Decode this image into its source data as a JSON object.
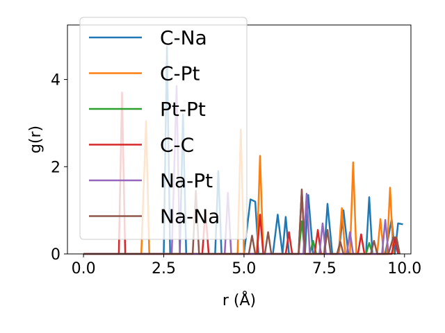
{
  "chart_data": {
    "type": "line",
    "xlabel": "r (Å)",
    "ylabel": "g(r)",
    "xlim": [
      -0.5,
      10.2
    ],
    "ylim": [
      0,
      5.25
    ],
    "xticks": [
      0.0,
      2.5,
      5.0,
      7.5,
      10.0
    ],
    "xtick_labels": [
      "0.0",
      "2.5",
      "5.0",
      "7.5",
      "10.0"
    ],
    "yticks": [
      0,
      2,
      4
    ],
    "ytick_labels": [
      "0",
      "2",
      "4"
    ],
    "grid": false,
    "legend_position": "upper-left",
    "series": [
      {
        "name": "C-Na",
        "color": "#1f77b4",
        "points": [
          [
            0,
            0
          ],
          [
            2.5,
            0
          ],
          [
            2.6,
            4.75
          ],
          [
            2.7,
            0
          ],
          [
            3.0,
            0
          ],
          [
            3.1,
            3.2
          ],
          [
            3.2,
            0
          ],
          [
            4.1,
            0
          ],
          [
            4.2,
            1.9
          ],
          [
            4.3,
            0
          ],
          [
            5.0,
            0
          ],
          [
            5.2,
            1.25
          ],
          [
            5.35,
            1.2
          ],
          [
            5.45,
            0
          ],
          [
            5.9,
            0
          ],
          [
            6.05,
            0.9
          ],
          [
            6.2,
            0
          ],
          [
            6.3,
            0.85
          ],
          [
            6.4,
            0
          ],
          [
            6.9,
            0
          ],
          [
            7.0,
            1.35
          ],
          [
            7.15,
            0
          ],
          [
            7.5,
            0
          ],
          [
            7.6,
            1.15
          ],
          [
            7.75,
            0
          ],
          [
            7.95,
            0
          ],
          [
            8.1,
            1.0
          ],
          [
            8.25,
            0
          ],
          [
            8.8,
            0
          ],
          [
            8.9,
            1.3
          ],
          [
            9.0,
            0
          ],
          [
            9.4,
            0
          ],
          [
            9.6,
            0.8
          ],
          [
            9.7,
            0
          ],
          [
            9.8,
            0.7
          ],
          [
            9.95,
            0.68
          ]
        ]
      },
      {
        "name": "C-Pt",
        "color": "#ff7f0e",
        "points": [
          [
            0,
            0
          ],
          [
            1.8,
            0
          ],
          [
            1.95,
            3.05
          ],
          [
            2.05,
            0
          ],
          [
            4.8,
            0
          ],
          [
            4.9,
            2.85
          ],
          [
            5.0,
            0
          ],
          [
            5.4,
            0
          ],
          [
            5.5,
            2.25
          ],
          [
            5.6,
            0
          ],
          [
            7.95,
            0
          ],
          [
            8.05,
            1.05
          ],
          [
            8.15,
            0
          ],
          [
            8.3,
            0
          ],
          [
            8.4,
            2.1
          ],
          [
            8.5,
            0
          ],
          [
            9.15,
            0
          ],
          [
            9.25,
            0.8
          ],
          [
            9.35,
            0
          ],
          [
            9.45,
            0
          ],
          [
            9.55,
            1.52
          ],
          [
            9.65,
            0
          ]
        ]
      },
      {
        "name": "Pt-Pt",
        "color": "#2ca02c",
        "points": [
          [
            0,
            0
          ],
          [
            6.7,
            0
          ],
          [
            6.8,
            0.75
          ],
          [
            6.9,
            0
          ],
          [
            7.05,
            0
          ],
          [
            7.15,
            0.3
          ],
          [
            7.25,
            0
          ],
          [
            8.8,
            0
          ],
          [
            8.9,
            0.25
          ],
          [
            9.0,
            0
          ]
        ]
      },
      {
        "name": "C-C",
        "color": "#d62728",
        "points": [
          [
            0,
            0
          ],
          [
            1.1,
            0
          ],
          [
            1.2,
            3.7
          ],
          [
            1.3,
            0
          ],
          [
            3.7,
            0
          ],
          [
            3.8,
            1.0
          ],
          [
            3.9,
            0
          ],
          [
            5.4,
            0
          ],
          [
            5.5,
            0.9
          ],
          [
            5.6,
            0
          ],
          [
            6.3,
            0
          ],
          [
            6.4,
            0.5
          ],
          [
            6.5,
            0
          ],
          [
            6.7,
            0
          ],
          [
            6.8,
            1.45
          ],
          [
            6.9,
            0
          ],
          [
            7.2,
            0
          ],
          [
            7.3,
            0.55
          ],
          [
            7.4,
            0
          ],
          [
            8.55,
            0
          ],
          [
            8.65,
            0.45
          ],
          [
            8.75,
            0
          ],
          [
            9.6,
            0
          ],
          [
            9.7,
            0.35
          ],
          [
            9.8,
            0
          ]
        ]
      },
      {
        "name": "Na-Pt",
        "color": "#9467bd",
        "points": [
          [
            0,
            0
          ],
          [
            2.75,
            0
          ],
          [
            2.9,
            3.85
          ],
          [
            3.0,
            0
          ],
          [
            4.4,
            0
          ],
          [
            4.5,
            1.4
          ],
          [
            4.6,
            0
          ],
          [
            6.85,
            0
          ],
          [
            6.95,
            1.38
          ],
          [
            7.05,
            0
          ],
          [
            7.35,
            0
          ],
          [
            7.45,
            0.7
          ],
          [
            7.55,
            0
          ],
          [
            8.2,
            0
          ],
          [
            8.3,
            0.5
          ],
          [
            8.4,
            0
          ],
          [
            9.3,
            0
          ],
          [
            9.4,
            0.78
          ],
          [
            9.5,
            0
          ]
        ]
      },
      {
        "name": "Na-Na",
        "color": "#8c564b",
        "points": [
          [
            0,
            0
          ],
          [
            3.4,
            0
          ],
          [
            3.5,
            1.45
          ],
          [
            3.6,
            0
          ],
          [
            5.15,
            0
          ],
          [
            5.25,
            0.42
          ],
          [
            5.35,
            0
          ],
          [
            5.65,
            0
          ],
          [
            5.75,
            0.5
          ],
          [
            5.85,
            0
          ],
          [
            6.7,
            0
          ],
          [
            6.8,
            1.48
          ],
          [
            6.9,
            0
          ],
          [
            7.5,
            0
          ],
          [
            7.6,
            0.55
          ],
          [
            7.7,
            0
          ],
          [
            7.9,
            0
          ],
          [
            8.0,
            0.28
          ],
          [
            8.1,
            0
          ],
          [
            8.95,
            0
          ],
          [
            9.05,
            0.3
          ],
          [
            9.15,
            0
          ],
          [
            9.5,
            0
          ],
          [
            9.65,
            0.38
          ],
          [
            9.75,
            0.38
          ],
          [
            9.85,
            0
          ]
        ]
      }
    ]
  }
}
